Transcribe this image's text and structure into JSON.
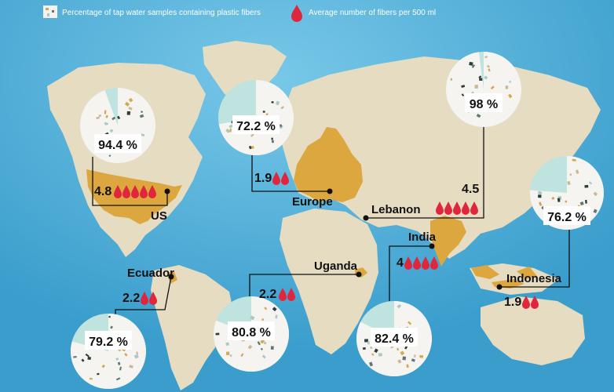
{
  "legend": {
    "percentage_label": "Percentage of tap water samples containing plastic fibers",
    "fibers_label": "Average number of fibers per 500 ml"
  },
  "colors": {
    "ocean": "#4fb0d8",
    "land": "#e6dcc2",
    "highlight": "#dca73e",
    "drop": "#e0263c",
    "pie_remainder": "#bfe3de"
  },
  "chart_data": {
    "type": "pie",
    "locations": [
      {
        "name": "US",
        "percent": 94.4,
        "percent_label": "94.4 %",
        "fibers": 4.8,
        "fibers_label": "4.8",
        "drops": 5
      },
      {
        "name": "Europe",
        "percent": 72.2,
        "percent_label": "72.2 %",
        "fibers": 1.9,
        "fibers_label": "1.9",
        "drops": 2
      },
      {
        "name": "Lebanon",
        "percent": 98,
        "percent_label": "98 %",
        "fibers": 4.5,
        "fibers_label": "4.5",
        "drops": 5
      },
      {
        "name": "Indonesia",
        "percent": 76.2,
        "percent_label": "76.2 %",
        "fibers": 1.9,
        "fibers_label": "1.9",
        "drops": 2
      },
      {
        "name": "India",
        "percent": 82.4,
        "percent_label": "82.4 %",
        "fibers": 4,
        "fibers_label": "4",
        "drops": 4
      },
      {
        "name": "Uganda",
        "percent": 80.8,
        "percent_label": "80.8 %",
        "fibers": 2.2,
        "fibers_label": "2.2",
        "drops": 2
      },
      {
        "name": "Ecuador",
        "percent": 79.2,
        "percent_label": "79.2 %",
        "fibers": 2.2,
        "fibers_label": "2.2",
        "drops": 2
      }
    ]
  }
}
